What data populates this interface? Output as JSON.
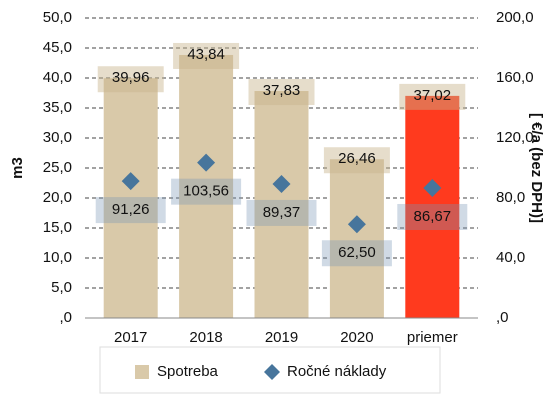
{
  "chart_data": {
    "type": "bar",
    "categories": [
      "2017",
      "2018",
      "2019",
      "2020",
      "priemer"
    ],
    "y_label": "m3",
    "y2_label": "[ €/a (bez DPH)]",
    "ylim": [
      0,
      50
    ],
    "yticks": [
      {
        "value": 0,
        "label": ",0"
      },
      {
        "value": 5,
        "label": "5,0"
      },
      {
        "value": 10,
        "label": "10,0"
      },
      {
        "value": 15,
        "label": "15,0"
      },
      {
        "value": 20,
        "label": "20,0"
      },
      {
        "value": 25,
        "label": "25,0"
      },
      {
        "value": 30,
        "label": "30,0"
      },
      {
        "value": 35,
        "label": "35,0"
      },
      {
        "value": 40,
        "label": "40,0"
      },
      {
        "value": 45,
        "label": "45,0"
      },
      {
        "value": 50,
        "label": "50,0"
      }
    ],
    "y2lim": [
      0,
      200
    ],
    "y2ticks": [
      {
        "value": 0,
        "label": ",0"
      },
      {
        "value": 40,
        "label": "40,0"
      },
      {
        "value": 80,
        "label": "80,0"
      },
      {
        "value": 120,
        "label": "120,0"
      },
      {
        "value": 160,
        "label": "160,0"
      },
      {
        "value": 200,
        "label": "200,0"
      }
    ],
    "grid": true,
    "legend": "bottom",
    "series": [
      {
        "name": "Spotreba",
        "type": "bar",
        "color": "#d9c9a9",
        "point_colors": [
          "#d9c9a9",
          "#d9c9a9",
          "#d9c9a9",
          "#d9c9a9",
          "#ff3a1e"
        ],
        "values": [
          39.96,
          43.84,
          37.83,
          26.46,
          37.02
        ],
        "value_labels": [
          "39,96",
          "43,84",
          "37,83",
          "26,46",
          "37,02"
        ]
      },
      {
        "name": "Ročné náklady",
        "type": "scatter",
        "axis": "y2",
        "color": "#47759c",
        "values": [
          91.26,
          103.56,
          89.37,
          62.5,
          86.67
        ],
        "value_labels": [
          "91,26",
          "103,56",
          "89,37",
          "62,50",
          "86,67"
        ]
      }
    ]
  }
}
